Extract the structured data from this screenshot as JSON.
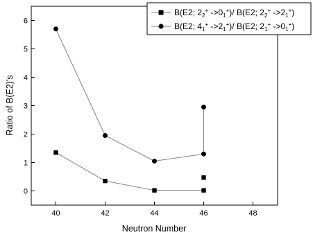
{
  "chart_data": {
    "type": "line",
    "xlabel": "Neutron Number",
    "ylabel": "Ratio of B(E2)'s",
    "xlim": [
      39,
      49
    ],
    "ylim": [
      -0.5,
      6.5
    ],
    "x_ticks": [
      40,
      42,
      44,
      46,
      48
    ],
    "y_ticks": [
      0,
      1,
      2,
      3,
      4,
      5,
      6
    ],
    "x_tick_labels": [
      "40",
      "42",
      "44",
      "46",
      "48"
    ],
    "y_tick_labels": [
      "0",
      "1",
      "2",
      "3",
      "4",
      "5",
      "6"
    ],
    "grid": false,
    "legend_position": "top-right",
    "series": [
      {
        "name": "B(E2; 2_2^+ ->0_1^+)/ B(E2; 2_2^+ ->2_1^+)",
        "marker": "square",
        "color": "#000000",
        "line_color": "#808080",
        "points": [
          {
            "x": 40,
            "y": 1.35
          },
          {
            "x": 42,
            "y": 0.35
          },
          {
            "x": 44,
            "y": 0.02
          },
          {
            "x": 46,
            "y": 0.02
          },
          {
            "x": 46,
            "y": 0.47
          }
        ],
        "connected_count": 4
      },
      {
        "name": "B(E2; 4_1^+ ->2_1^+)/ B(E2; 2_1^+ ->0_1^+)",
        "marker": "circle",
        "color": "#000000",
        "line_color": "#808080",
        "points": [
          {
            "x": 40,
            "y": 5.7
          },
          {
            "x": 42,
            "y": 1.95
          },
          {
            "x": 44,
            "y": 1.05
          },
          {
            "x": 46,
            "y": 1.3
          },
          {
            "x": 46,
            "y": 2.95
          }
        ],
        "connected_count": 5
      }
    ]
  },
  "legend": {
    "series1": {
      "p1": "B(E2; 2",
      "s1": "2",
      "u1": "+",
      "p2": " ->0",
      "s2": "1",
      "u2": "+",
      "p3": ")/ B(E2; 2",
      "s3": "2",
      "u3": "+",
      "p4": " ->2",
      "s4": "1",
      "u4": "+",
      "p5": ")"
    },
    "series2": {
      "p1": "B(E2; 4",
      "s1": "1",
      "u1": "+",
      "p2": " ->2",
      "s2": "1",
      "u2": "+",
      "p3": ")/ B(E2; 2",
      "s3": "1",
      "u3": "+",
      "p4": " ->0",
      "s4": "1",
      "u4": "+",
      "p5": ")"
    }
  }
}
